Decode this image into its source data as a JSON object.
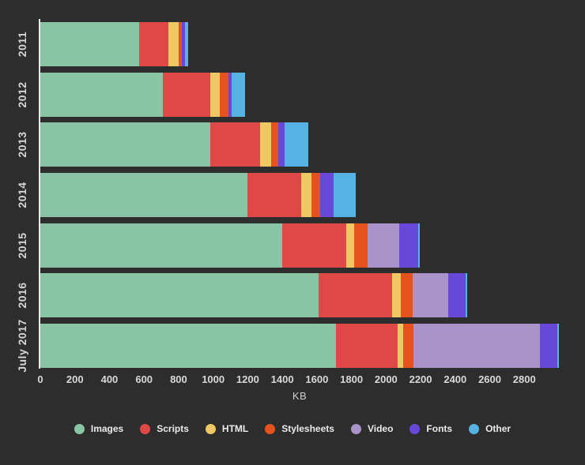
{
  "chart_data": {
    "type": "bar",
    "orientation": "horizontal",
    "stacked": true,
    "title": "",
    "xlabel": "KB",
    "ylabel": "",
    "xlim": [
      0,
      3000
    ],
    "xticks": [
      0,
      200,
      400,
      600,
      800,
      1000,
      1200,
      1400,
      1600,
      1800,
      2000,
      2200,
      2400,
      2600,
      2800
    ],
    "grid": false,
    "legend_position": "bottom",
    "background_color": "#2e2d2d",
    "axis_line_color": "#e9e9e9",
    "label_color": "#d6d6d6",
    "categories": [
      "2011",
      "2012",
      "2013",
      "2014",
      "2015",
      "2016",
      "July 2017"
    ],
    "series": [
      {
        "name": "Images",
        "color": "#89c4a4",
        "values": [
          570,
          710,
          985,
          1200,
          1400,
          1610,
          1710
        ]
      },
      {
        "name": "Scripts",
        "color": "#e04848",
        "values": [
          170,
          275,
          285,
          310,
          370,
          425,
          355
        ]
      },
      {
        "name": "HTML",
        "color": "#edc863",
        "values": [
          60,
          55,
          65,
          60,
          45,
          50,
          35
        ]
      },
      {
        "name": "Stylesheets",
        "color": "#e5521b",
        "values": [
          20,
          50,
          40,
          50,
          80,
          70,
          60
        ]
      },
      {
        "name": "Video",
        "color": "#a993c8",
        "values": [
          0,
          0,
          0,
          0,
          180,
          205,
          730
        ]
      },
      {
        "name": "Fonts",
        "color": "#6848d8",
        "values": [
          15,
          15,
          40,
          75,
          110,
          100,
          100
        ]
      },
      {
        "name": "Other",
        "color": "#55b2e2",
        "values": [
          20,
          80,
          135,
          130,
          10,
          10,
          10
        ]
      }
    ]
  }
}
